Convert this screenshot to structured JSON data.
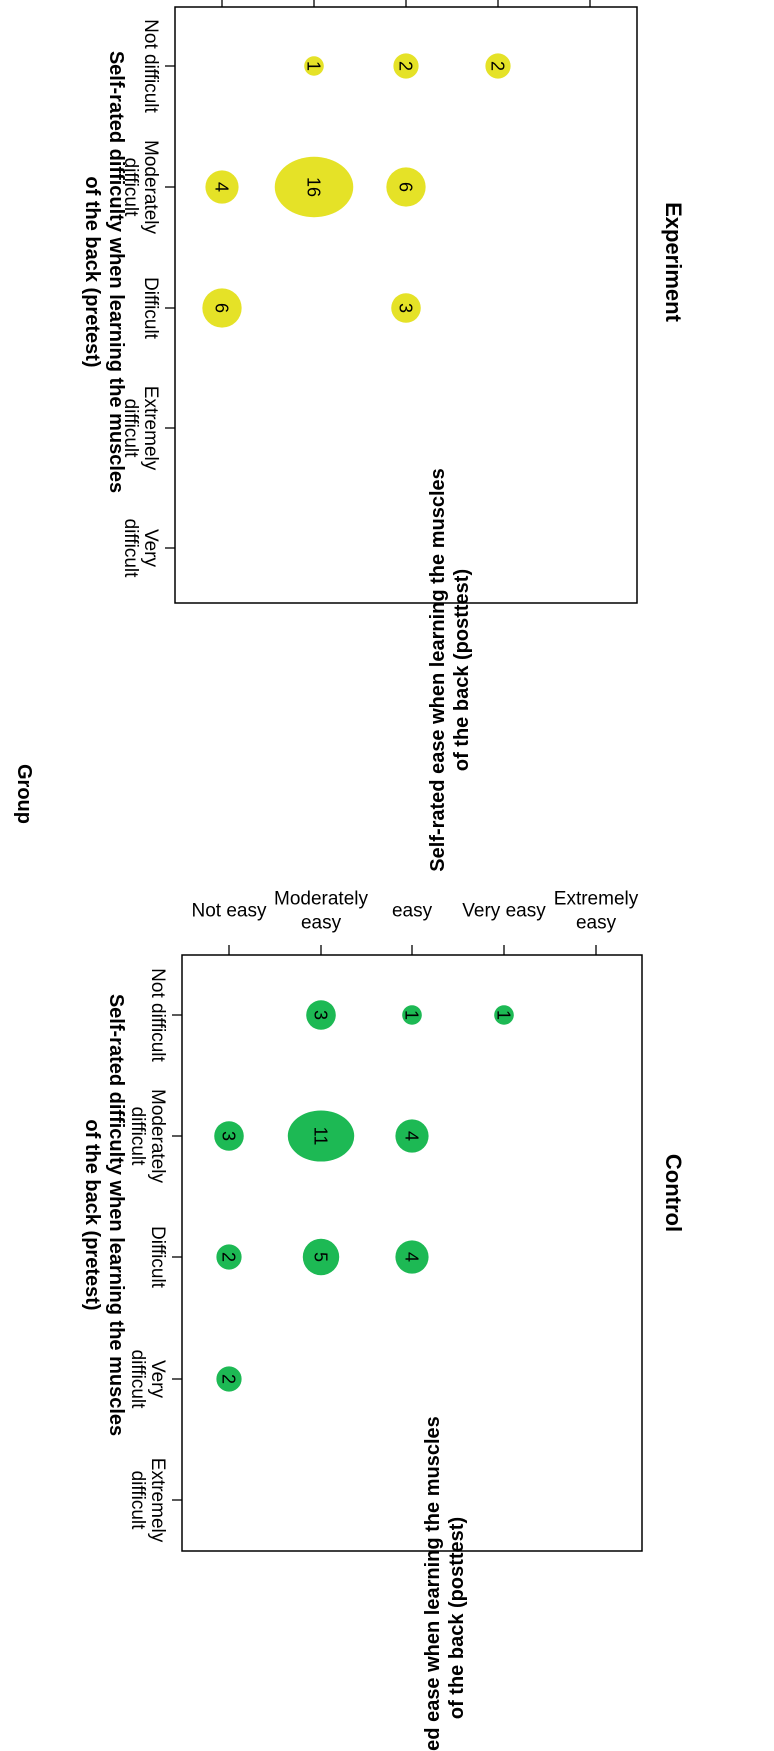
{
  "group_title": "Group",
  "chart_data": [
    {
      "type": "scatter",
      "title": "Control",
      "xlabel": "Self-rated difficulty when learning the muscles of the back (pretest)",
      "ylabel": "Self-rated ease when learning the muscles of the back (posttest)",
      "x_categories": [
        "Not difficult",
        "Moderately difficult",
        "Difficult",
        "Very difficult",
        "Extremely difficult"
      ],
      "y_categories": [
        "Not easy",
        "Moderately easy",
        "easy",
        "Very easy",
        "Extremely easy"
      ],
      "color": "#1db954",
      "points": [
        {
          "x": "Not difficult",
          "y": "Very easy",
          "count": 1
        },
        {
          "x": "Not difficult",
          "y": "easy",
          "count": 1
        },
        {
          "x": "Not difficult",
          "y": "Moderately easy",
          "count": 3
        },
        {
          "x": "Moderately difficult",
          "y": "easy",
          "count": 4
        },
        {
          "x": "Moderately difficult",
          "y": "Moderately easy",
          "count": 11
        },
        {
          "x": "Moderately difficult",
          "y": "Not easy",
          "count": 3
        },
        {
          "x": "Difficult",
          "y": "easy",
          "count": 4
        },
        {
          "x": "Difficult",
          "y": "Moderately easy",
          "count": 5
        },
        {
          "x": "Difficult",
          "y": "Not easy",
          "count": 2
        },
        {
          "x": "Very difficult",
          "y": "Not easy",
          "count": 2
        }
      ]
    },
    {
      "type": "scatter",
      "title": "Experiment",
      "xlabel": "Self-rated difficulty when learning the muscles of the back (pretest)",
      "ylabel": "Self-rated ease when learning the muscles of the back (posttest)",
      "x_categories": [
        "Not difficult",
        "Moderately difficult",
        "Difficult",
        "Extremely difficult",
        "Very difficult"
      ],
      "y_categories": [
        "Not easy",
        "Moderately easy",
        "easy",
        "Very easy",
        "Extremely easy"
      ],
      "color": "#e5e227",
      "points": [
        {
          "x": "Not difficult",
          "y": "Very easy",
          "count": 2
        },
        {
          "x": "Not difficult",
          "y": "easy",
          "count": 2
        },
        {
          "x": "Not difficult",
          "y": "Moderately easy",
          "count": 1
        },
        {
          "x": "Moderately difficult",
          "y": "easy",
          "count": 6
        },
        {
          "x": "Moderately difficult",
          "y": "Moderately easy",
          "count": 16
        },
        {
          "x": "Moderately difficult",
          "y": "Not easy",
          "count": 4
        },
        {
          "x": "Difficult",
          "y": "easy",
          "count": 3
        },
        {
          "x": "Difficult",
          "y": "Not easy",
          "count": 6
        }
      ]
    }
  ]
}
